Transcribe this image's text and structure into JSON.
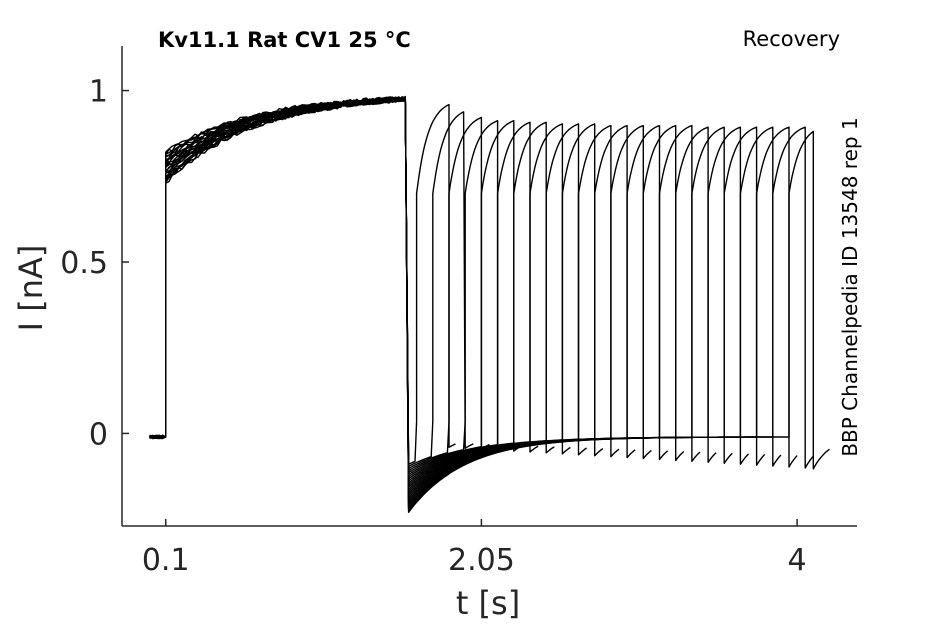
{
  "chart_data": {
    "type": "line",
    "title": "Kv11.1  Rat  CV1  25 °C",
    "protocol_label": "Recovery",
    "side_label": "BBP Channelpedia ID 13548 rep 1",
    "xlabel": "t [s]",
    "ylabel": "I [nA]",
    "xticks": [
      {
        "value": 0.1,
        "label": "0.1"
      },
      {
        "value": 2.05,
        "label": "2.05"
      },
      {
        "value": 4.0,
        "label": "4"
      }
    ],
    "yticks": [
      {
        "value": 0,
        "label": "0"
      },
      {
        "value": 0.5,
        "label": "0.5"
      },
      {
        "value": 1,
        "label": "1"
      }
    ],
    "xlim": [
      -0.17,
      4.37
    ],
    "ylim": [
      -0.27,
      1.13
    ],
    "grid": false,
    "line_color": "#000000",
    "trace_model": {
      "baseline_start": -0.01,
      "t_trace_start": 0.0,
      "t_step_on": 0.1,
      "t_step_off": 1.6,
      "prepulse_onset_min": 0.73,
      "prepulse_onset_max": 0.82,
      "prepulse_peak": 0.99,
      "prepulse_tau": 0.55,
      "tail_peak_min": -0.23,
      "tail_peak_max": -0.09,
      "tail_settle": -0.01,
      "tail_tau": 0.35,
      "test_onset": 0.7,
      "test_tau": 0.07
    },
    "series": [
      {
        "gap_end": 1.65,
        "test_end": 1.85,
        "test_peak": 0.975,
        "trace_end": 1.9
      },
      {
        "gap_end": 1.75,
        "test_end": 1.95,
        "test_peak": 0.955,
        "trace_end": 2.0
      },
      {
        "gap_end": 1.85,
        "test_end": 2.05,
        "test_peak": 0.935,
        "trace_end": 2.1
      },
      {
        "gap_end": 1.95,
        "test_end": 2.15,
        "test_peak": 0.925,
        "trace_end": 2.2
      },
      {
        "gap_end": 2.05,
        "test_end": 2.25,
        "test_peak": 0.925,
        "trace_end": 2.3
      },
      {
        "gap_end": 2.15,
        "test_end": 2.35,
        "test_peak": 0.92,
        "trace_end": 2.4
      },
      {
        "gap_end": 2.25,
        "test_end": 2.45,
        "test_peak": 0.92,
        "trace_end": 2.5
      },
      {
        "gap_end": 2.35,
        "test_end": 2.55,
        "test_peak": 0.915,
        "trace_end": 2.6
      },
      {
        "gap_end": 2.45,
        "test_end": 2.65,
        "test_peak": 0.915,
        "trace_end": 2.7
      },
      {
        "gap_end": 2.55,
        "test_end": 2.75,
        "test_peak": 0.915,
        "trace_end": 2.8
      },
      {
        "gap_end": 2.65,
        "test_end": 2.85,
        "test_peak": 0.91,
        "trace_end": 2.9
      },
      {
        "gap_end": 2.75,
        "test_end": 2.95,
        "test_peak": 0.91,
        "trace_end": 3.0
      },
      {
        "gap_end": 2.85,
        "test_end": 3.05,
        "test_peak": 0.91,
        "trace_end": 3.1
      },
      {
        "gap_end": 2.95,
        "test_end": 3.15,
        "test_peak": 0.91,
        "trace_end": 3.2
      },
      {
        "gap_end": 3.05,
        "test_end": 3.25,
        "test_peak": 0.91,
        "trace_end": 3.3
      },
      {
        "gap_end": 3.15,
        "test_end": 3.35,
        "test_peak": 0.91,
        "trace_end": 3.4
      },
      {
        "gap_end": 3.25,
        "test_end": 3.45,
        "test_peak": 0.905,
        "trace_end": 3.5
      },
      {
        "gap_end": 3.35,
        "test_end": 3.55,
        "test_peak": 0.905,
        "trace_end": 3.6
      },
      {
        "gap_end": 3.45,
        "test_end": 3.65,
        "test_peak": 0.905,
        "trace_end": 3.7
      },
      {
        "gap_end": 3.55,
        "test_end": 3.75,
        "test_peak": 0.905,
        "trace_end": 3.8
      },
      {
        "gap_end": 3.65,
        "test_end": 3.85,
        "test_peak": 0.905,
        "trace_end": 3.9
      },
      {
        "gap_end": 3.75,
        "test_end": 3.95,
        "test_peak": 0.905,
        "trace_end": 4.0
      },
      {
        "gap_end": 3.85,
        "test_end": 4.05,
        "test_peak": 0.905,
        "trace_end": 4.1
      },
      {
        "gap_end": 3.95,
        "test_end": 4.1,
        "test_peak": 0.905,
        "trace_end": 4.2
      }
    ]
  }
}
